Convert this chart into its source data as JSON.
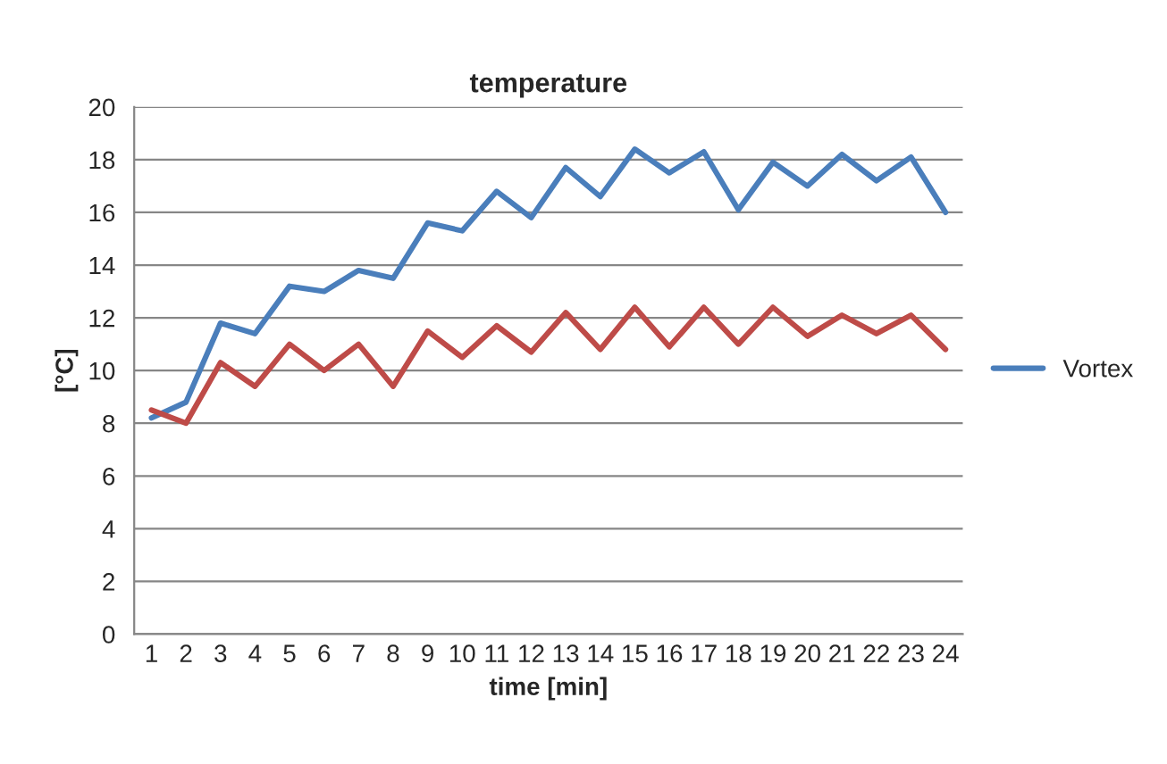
{
  "chart_data": {
    "type": "line",
    "title": "temperature",
    "xlabel": "time [min]",
    "ylabel": "[°C]",
    "categories": [
      "1",
      "2",
      "3",
      "4",
      "5",
      "6",
      "7",
      "8",
      "9",
      "10",
      "11",
      "12",
      "13",
      "14",
      "15",
      "16",
      "17",
      "18",
      "19",
      "20",
      "21",
      "22",
      "23",
      "24"
    ],
    "series": [
      {
        "name": "Vortex",
        "color": "#4a7ebb",
        "values": [
          8.2,
          8.8,
          11.8,
          11.4,
          13.2,
          13.0,
          13.8,
          13.5,
          15.6,
          15.3,
          16.8,
          15.8,
          17.7,
          16.6,
          18.4,
          17.5,
          18.3,
          16.1,
          17.9,
          17.0,
          18.2,
          17.2,
          18.1,
          16.0
        ]
      },
      {
        "color": "#be4b48",
        "values": [
          8.5,
          8.0,
          10.3,
          9.4,
          11.0,
          10.0,
          11.0,
          9.4,
          11.5,
          10.5,
          11.7,
          10.7,
          12.2,
          10.8,
          12.4,
          10.9,
          12.4,
          11.0,
          12.4,
          11.3,
          12.1,
          11.4,
          12.1,
          10.8
        ]
      }
    ],
    "ylim": [
      0,
      20
    ],
    "yticks": [
      0,
      2,
      4,
      6,
      8,
      10,
      12,
      14,
      16,
      18,
      20
    ],
    "grid": "y",
    "legend": "right",
    "marker": "none",
    "line_style": "solid"
  }
}
